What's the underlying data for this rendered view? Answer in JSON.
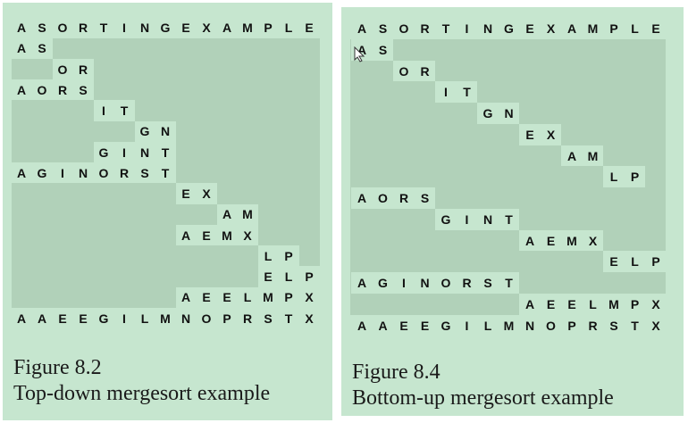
{
  "figures": [
    {
      "id": "fig-8-2",
      "number_label": "Figure 8.2",
      "title": "Top-down mergesort example",
      "rows": [
        {
          "letters": "ASORTINGEXAMPLE",
          "start": 0
        },
        {
          "letters": "AS",
          "start": 0
        },
        {
          "letters": "OR",
          "start": 2
        },
        {
          "letters": "AORS",
          "start": 0
        },
        {
          "letters": "IT",
          "start": 4
        },
        {
          "letters": "GN",
          "start": 6
        },
        {
          "letters": "GINT",
          "start": 4
        },
        {
          "letters": "AGINORST",
          "start": 0
        },
        {
          "letters": "EX",
          "start": 8
        },
        {
          "letters": "AM",
          "start": 10
        },
        {
          "letters": "AEMX",
          "start": 8
        },
        {
          "letters": "LP",
          "start": 12
        },
        {
          "letters": "ELP",
          "start": 12
        },
        {
          "letters": "AEELMPX",
          "start": 8
        },
        {
          "letters": "AAEEGILMNOPRSTX",
          "start": 0
        }
      ]
    },
    {
      "id": "fig-8-4",
      "number_label": "Figure 8.4",
      "title": "Bottom-up mergesort example",
      "rows": [
        {
          "letters": "ASORTINGEXAMPLE",
          "start": 0
        },
        {
          "letters": "AS",
          "start": 0
        },
        {
          "letters": "OR",
          "start": 2
        },
        {
          "letters": "IT",
          "start": 4
        },
        {
          "letters": "GN",
          "start": 6
        },
        {
          "letters": "EX",
          "start": 8
        },
        {
          "letters": "AM",
          "start": 10
        },
        {
          "letters": "LP",
          "start": 12
        },
        {
          "letters": "AORS",
          "start": 0
        },
        {
          "letters": "GINT",
          "start": 4
        },
        {
          "letters": "AEMX",
          "start": 8
        },
        {
          "letters": "ELP",
          "start": 12
        },
        {
          "letters": "AGINORST",
          "start": 0
        },
        {
          "letters": "AEELMPX",
          "start": 8
        },
        {
          "letters": "AAEEGILMNOPRSTX",
          "start": 0
        }
      ]
    }
  ],
  "colors": {
    "panel": "#c6e6cf",
    "shade": "#b1d1b9",
    "text": "#111111"
  },
  "icons": {
    "cursor": "mouse-pointer-icon"
  }
}
